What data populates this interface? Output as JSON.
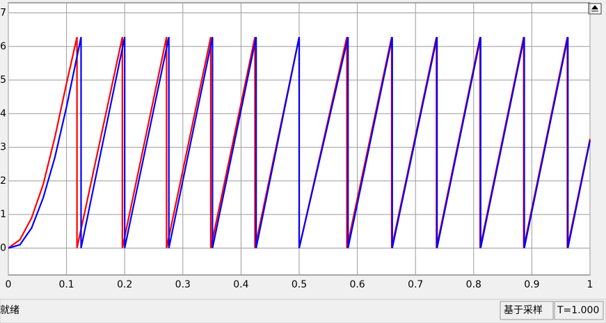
{
  "chart_data": {
    "type": "line",
    "xlim": [
      0,
      1
    ],
    "ylim": [
      -0.8,
      7.3
    ],
    "xticks": [
      0,
      0.1,
      0.2,
      0.3,
      0.4,
      0.5,
      0.6,
      0.7,
      0.8,
      0.9,
      1
    ],
    "yticks": [
      0,
      1,
      2,
      3,
      4,
      5,
      6,
      7
    ],
    "grid": true,
    "series": [
      {
        "color": "#ff0000",
        "x": [
          0,
          0.02,
          0.04,
          0.06,
          0.08,
          0.1,
          0.118,
          0.118,
          0.196,
          0.196,
          0.272,
          0.272,
          0.348,
          0.348,
          0.424,
          0.424,
          0.5,
          0.5,
          0.582,
          0.582,
          0.659,
          0.659,
          0.736,
          0.736,
          0.811,
          0.811,
          0.886,
          0.886,
          0.961,
          0.961,
          1
        ],
        "values": [
          0,
          0.25,
          0.9,
          1.9,
          3.3,
          4.9,
          6.28,
          0,
          6.28,
          0,
          6.28,
          0,
          6.28,
          0,
          6.28,
          0,
          6.28,
          0,
          6.28,
          0,
          6.28,
          0,
          6.28,
          0,
          6.28,
          0,
          6.28,
          0,
          6.28,
          0,
          3.25
        ]
      },
      {
        "color": "#0000ff",
        "x": [
          0,
          0.02,
          0.04,
          0.06,
          0.08,
          0.1,
          0.125,
          0.125,
          0.2,
          0.2,
          0.276,
          0.276,
          0.351,
          0.351,
          0.426,
          0.426,
          0.5,
          0.5,
          0.584,
          0.584,
          0.66,
          0.66,
          0.737,
          0.737,
          0.812,
          0.812,
          0.887,
          0.887,
          0.962,
          0.962,
          1
        ],
        "values": [
          0,
          0.1,
          0.6,
          1.5,
          2.7,
          4.2,
          6.28,
          0,
          6.28,
          0,
          6.28,
          0,
          6.28,
          0,
          6.28,
          0,
          6.28,
          0,
          6.28,
          0,
          6.28,
          0,
          6.28,
          0,
          6.28,
          0,
          6.28,
          0,
          6.28,
          0,
          3.2
        ]
      }
    ]
  },
  "status_bar": {
    "status": "就绪",
    "mode": "基于采样",
    "time": "T=1.000"
  }
}
